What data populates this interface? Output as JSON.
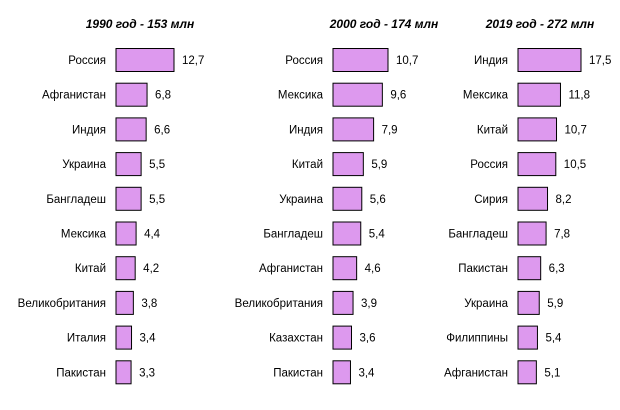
{
  "colors": {
    "bar_fill": "#dd99ee",
    "bar_stroke": "#000000",
    "text": "#000000"
  },
  "chart_data": [
    {
      "type": "bar",
      "orientation": "horizontal",
      "title": "1990 год - 153 млн",
      "categories": [
        "Россия",
        "Афганистан",
        "Индия",
        "Украина",
        "Бангладеш",
        "Мексика",
        "Китай",
        "Великобритания",
        "Италия",
        "Пакистан"
      ],
      "values": [
        12.7,
        6.8,
        6.6,
        5.5,
        5.5,
        4.4,
        4.2,
        3.8,
        3.4,
        3.3
      ],
      "value_labels": [
        "12,7",
        "6,8",
        "6,6",
        "5,5",
        "5,5",
        "4,4",
        "4,2",
        "3,8",
        "3,4",
        "3,3"
      ],
      "grid": false
    },
    {
      "type": "bar",
      "orientation": "horizontal",
      "title": "2000 год - 174 млн",
      "categories": [
        "Россия",
        "Мексика",
        "Индия",
        "Китай",
        "Украина",
        "Бангладеш",
        "Афганистан",
        "Великобритания",
        "Казахстан",
        "Пакистан"
      ],
      "values": [
        10.7,
        9.6,
        7.9,
        5.9,
        5.6,
        5.4,
        4.6,
        3.9,
        3.6,
        3.4
      ],
      "value_labels": [
        "10,7",
        "9,6",
        "7,9",
        "5,9",
        "5,6",
        "5,4",
        "4,6",
        "3,9",
        "3,6",
        "3,4"
      ],
      "grid": false
    },
    {
      "type": "bar",
      "orientation": "horizontal",
      "title": "2019 год - 272 млн",
      "categories": [
        "Индия",
        "Мексика",
        "Китай",
        "Россия",
        "Сирия",
        "Бангладеш",
        "Пакистан",
        "Украина",
        "Филиппины",
        "Афганистан"
      ],
      "values": [
        17.5,
        11.8,
        10.7,
        10.5,
        8.2,
        7.8,
        6.3,
        5.9,
        5.4,
        5.1
      ],
      "value_labels": [
        "17,5",
        "11,8",
        "10,7",
        "10,5",
        "8,2",
        "7,8",
        "6,3",
        "5,9",
        "5,4",
        "5,1"
      ],
      "grid": false
    }
  ]
}
